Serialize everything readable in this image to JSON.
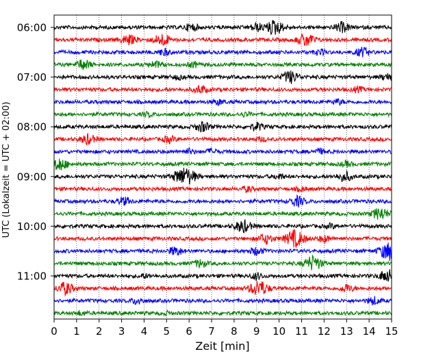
{
  "chart_data": {
    "type": "line",
    "title": "",
    "xlabel": "Zeit  [min]",
    "ylabel": "UTC (Lokalzeit = UTC + 02:00)",
    "xlim": [
      0,
      15
    ],
    "xticks": [
      "0",
      "1",
      "2",
      "3",
      "4",
      "5",
      "6",
      "7",
      "8",
      "9",
      "10",
      "11",
      "12",
      "13",
      "14",
      "15"
    ],
    "yticks": [
      "06:00",
      "07:00",
      "08:00",
      "09:00",
      "10:00",
      "11:00"
    ],
    "grid": "vertical dotted",
    "trace_interval_min": 15,
    "trace_colors": [
      "#000000",
      "#ff0000",
      "#0000ff",
      "#008000"
    ],
    "traces": [
      {
        "start": "06:00",
        "bursts": [
          [
            6.1,
            0.6
          ],
          [
            9.0,
            0.6
          ],
          [
            9.8,
            1.2
          ],
          [
            12.8,
            0.8
          ]
        ]
      },
      {
        "start": "06:15",
        "bursts": [
          [
            3.3,
            0.8
          ],
          [
            4.8,
            1.0
          ],
          [
            11.2,
            1.1
          ]
        ]
      },
      {
        "start": "06:30",
        "bursts": [
          [
            4.9,
            0.5
          ],
          [
            11.8,
            0.4
          ],
          [
            13.7,
            0.7
          ]
        ]
      },
      {
        "start": "06:45",
        "bursts": [
          [
            1.3,
            0.8
          ],
          [
            4.5,
            0.5
          ],
          [
            6.2,
            0.4
          ]
        ]
      },
      {
        "start": "07:00",
        "bursts": [
          [
            5.5,
            0.3
          ],
          [
            10.5,
            1.0
          ],
          [
            14.8,
            0.5
          ]
        ]
      },
      {
        "start": "07:15",
        "bursts": [
          [
            6.5,
            0.6
          ],
          [
            13.5,
            0.4
          ]
        ]
      },
      {
        "start": "07:30",
        "bursts": [
          [
            7.3,
            0.4
          ],
          [
            12.6,
            0.4
          ]
        ]
      },
      {
        "start": "07:45",
        "bursts": [
          [
            4.2,
            0.3
          ],
          [
            8.5,
            0.3
          ]
        ]
      },
      {
        "start": "08:00",
        "bursts": [
          [
            6.6,
            0.8
          ],
          [
            9.0,
            0.6
          ]
        ]
      },
      {
        "start": "08:15",
        "bursts": [
          [
            1.5,
            0.8
          ],
          [
            5.1,
            0.5
          ],
          [
            9.2,
            0.3
          ]
        ]
      },
      {
        "start": "08:30",
        "bursts": [
          [
            6.0,
            0.4
          ],
          [
            7.0,
            0.4
          ],
          [
            11.8,
            0.4
          ]
        ]
      },
      {
        "start": "08:45",
        "bursts": [
          [
            0.2,
            1.1
          ],
          [
            13.0,
            0.4
          ]
        ]
      },
      {
        "start": "09:00",
        "bursts": [
          [
            5.6,
            1.0
          ],
          [
            6.0,
            1.0
          ],
          [
            10.0,
            0.4
          ],
          [
            12.9,
            0.8
          ]
        ]
      },
      {
        "start": "09:15",
        "bursts": [
          [
            8.6,
            0.4
          ],
          [
            11.0,
            0.3
          ]
        ]
      },
      {
        "start": "09:30",
        "bursts": [
          [
            3.1,
            0.6
          ],
          [
            10.8,
            0.8
          ]
        ]
      },
      {
        "start": "09:45",
        "bursts": [
          [
            14.5,
            1.0
          ]
        ]
      },
      {
        "start": "10:00",
        "bursts": [
          [
            8.4,
            1.0
          ],
          [
            12.3,
            0.3
          ]
        ]
      },
      {
        "start": "10:15",
        "bursts": [
          [
            9.4,
            0.8
          ],
          [
            10.7,
            1.4
          ],
          [
            12.0,
            0.5
          ]
        ]
      },
      {
        "start": "10:30",
        "bursts": [
          [
            5.4,
            0.7
          ],
          [
            9.0,
            0.6
          ],
          [
            14.9,
            1.5
          ]
        ]
      },
      {
        "start": "10:45",
        "bursts": [
          [
            6.5,
            0.6
          ],
          [
            11.5,
            1.2
          ]
        ]
      },
      {
        "start": "11:00",
        "bursts": [
          [
            4.0,
            0.3
          ],
          [
            9.0,
            0.5
          ],
          [
            14.8,
            1.0
          ]
        ]
      },
      {
        "start": "11:15",
        "bursts": [
          [
            0.5,
            1.0
          ],
          [
            9.1,
            1.3
          ],
          [
            13.0,
            0.6
          ]
        ]
      },
      {
        "start": "11:30",
        "bursts": [
          [
            3.7,
            0.5
          ],
          [
            14.2,
            0.6
          ]
        ]
      },
      {
        "start": "11:45",
        "bursts": [
          [
            1.2,
            0.3
          ],
          [
            5.0,
            0.2
          ]
        ]
      }
    ]
  }
}
